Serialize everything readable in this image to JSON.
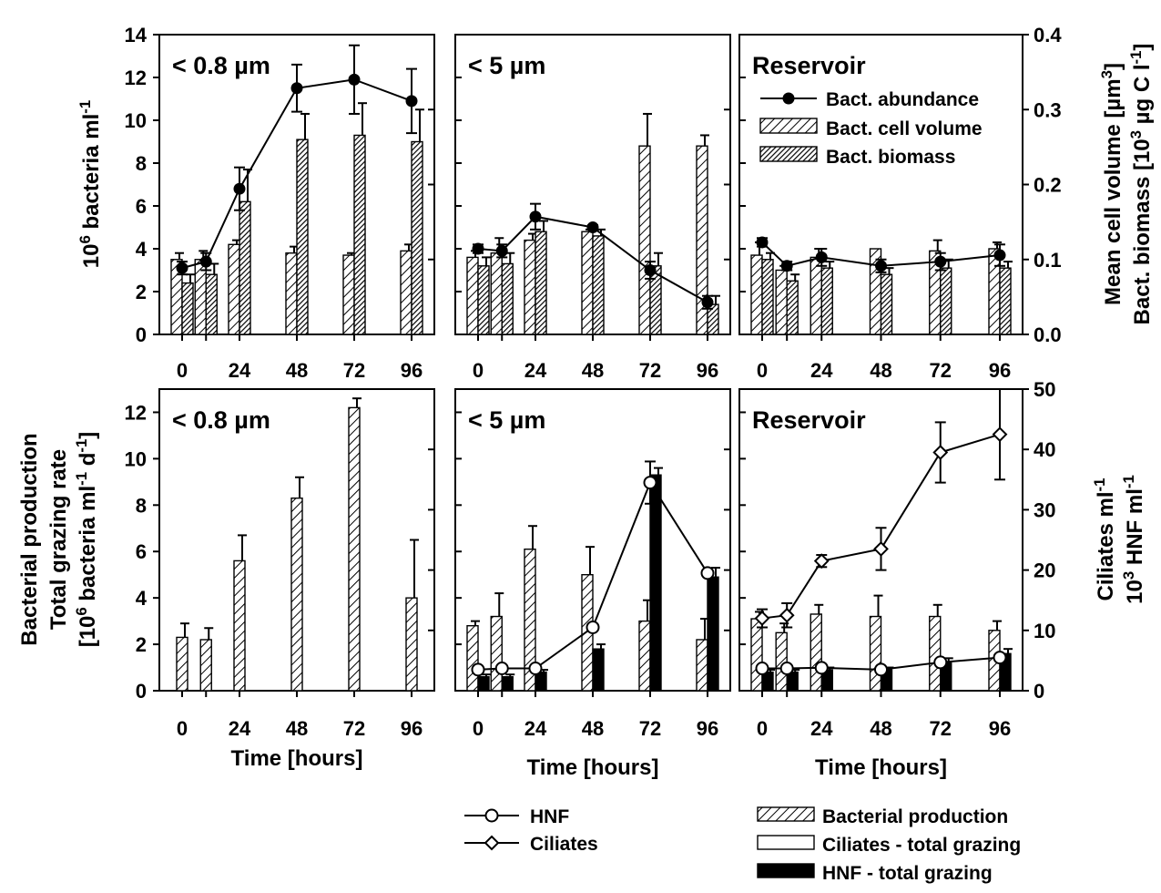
{
  "chart_data": [
    {
      "id": "top-small",
      "type": "bar+line",
      "title": "< 0.8 µm",
      "ylabel_left": "10^6 bacteria ml^-1",
      "ylim_left": [
        0,
        14
      ],
      "yticks_left": [
        0,
        2,
        4,
        6,
        8,
        10,
        12,
        14
      ],
      "ylim_right": [
        0,
        0.4
      ],
      "x_tick_labels": [
        0,
        24,
        48,
        72,
        96
      ],
      "groups": [
        0,
        10,
        24,
        48,
        72,
        96
      ],
      "series": [
        {
          "name": "Bact. abundance",
          "kind": "line",
          "axis": "left",
          "x": [
            0,
            10,
            24,
            48,
            72,
            96
          ],
          "y": [
            3.1,
            3.4,
            6.8,
            11.5,
            11.9,
            10.9
          ],
          "err": [
            0.3,
            0.4,
            1.0,
            1.1,
            1.6,
            1.5
          ]
        },
        {
          "name": "Bact. cell volume",
          "kind": "bar",
          "axis": "left",
          "x": [
            0,
            10,
            24,
            48,
            72,
            96
          ],
          "y": [
            3.5,
            3.5,
            4.2,
            3.8,
            3.7,
            3.9
          ],
          "err": [
            0.3,
            0.4,
            0.2,
            0.3,
            0.1,
            0.3
          ]
        },
        {
          "name": "Bact. biomass",
          "kind": "bar",
          "axis": "left",
          "x": [
            0,
            10,
            24,
            48,
            72,
            96
          ],
          "y": [
            2.4,
            2.8,
            6.2,
            9.1,
            9.3,
            9.0
          ],
          "err": [
            0.4,
            0.5,
            1.5,
            1.2,
            1.5,
            1.5
          ]
        }
      ]
    },
    {
      "id": "top-mid",
      "type": "bar+line",
      "title": "< 5 µm",
      "ylim_left": [
        0,
        14
      ],
      "x_tick_labels": [
        0,
        24,
        48,
        72,
        96
      ],
      "groups": [
        0,
        10,
        24,
        48,
        72,
        96
      ],
      "series": [
        {
          "name": "Bact. abundance",
          "kind": "line",
          "axis": "left",
          "x": [
            0,
            10,
            24,
            48,
            72,
            96
          ],
          "y": [
            4.0,
            3.9,
            5.5,
            5.0,
            3.0,
            1.5
          ],
          "err": [
            0.2,
            0.3,
            0.6,
            0.1,
            0.4,
            0.3
          ]
        },
        {
          "name": "Bact. cell volume",
          "kind": "bar",
          "axis": "left",
          "x": [
            0,
            10,
            24,
            48,
            72,
            96
          ],
          "y": [
            3.6,
            3.8,
            4.4,
            4.8,
            8.8,
            8.8
          ],
          "err": [
            0.3,
            0.7,
            0.3,
            0.1,
            1.5,
            0.5
          ]
        },
        {
          "name": "Bact. biomass",
          "kind": "bar",
          "axis": "left",
          "x": [
            0,
            10,
            24,
            48,
            72,
            96
          ],
          "y": [
            3.2,
            3.3,
            4.8,
            4.6,
            3.2,
            1.4
          ],
          "err": [
            0.4,
            0.5,
            0.5,
            0.3,
            0.6,
            0.4
          ]
        }
      ]
    },
    {
      "id": "top-res",
      "type": "bar+line",
      "title": "Reservoir",
      "ylabel_right": [
        "Mean cell volume [µm^3]",
        "Bact. biomass [10^3 µg C l^-1]"
      ],
      "ylim_left": [
        0,
        14
      ],
      "ylim_right": [
        0,
        0.4
      ],
      "yticks_right": [
        "0.0",
        "0.1",
        "0.2",
        "0.3",
        "0.4"
      ],
      "x_tick_labels": [
        0,
        24,
        48,
        72,
        96
      ],
      "groups": [
        0,
        10,
        24,
        48,
        72,
        96
      ],
      "legend": {
        "placement": "right, below title",
        "entries": [
          "Bact. abundance",
          "Bact. cell volume",
          "Bact. biomass"
        ]
      },
      "series": [
        {
          "name": "Bact. abundance",
          "kind": "line",
          "axis": "left",
          "x": [
            0,
            10,
            24,
            48,
            72,
            96
          ],
          "y": [
            4.3,
            3.2,
            3.6,
            3.2,
            3.4,
            3.7
          ],
          "err": [
            0.2,
            0.2,
            0.4,
            0.3,
            0.4,
            0.5
          ]
        },
        {
          "name": "Bact. cell volume",
          "kind": "bar",
          "axis": "left",
          "x": [
            0,
            10,
            24,
            48,
            72,
            96
          ],
          "y": [
            3.7,
            3.0,
            3.6,
            4.0,
            3.9,
            4.0
          ],
          "err": [
            0.6,
            0.2,
            0.4,
            0.0,
            0.5,
            0.3
          ]
        },
        {
          "name": "Bact. biomass",
          "kind": "bar",
          "axis": "left",
          "x": [
            0,
            10,
            24,
            48,
            72,
            96
          ],
          "y": [
            3.5,
            2.5,
            3.1,
            2.8,
            3.1,
            3.1
          ],
          "err": [
            0.3,
            0.3,
            0.3,
            0.3,
            0.4,
            0.3
          ]
        }
      ]
    },
    {
      "id": "bot-small",
      "type": "bar",
      "title": "< 0.8 µm",
      "ylabel_left": [
        "Bacterial production",
        "Total grazing rate",
        "[10^6 bacteria ml^-1 d^-1]"
      ],
      "ylim_left": [
        0,
        13
      ],
      "yticks_left": [
        0,
        2,
        4,
        6,
        8,
        10,
        12
      ],
      "x_tick_labels": [
        0,
        24,
        48,
        72,
        96
      ],
      "xlabel": "Time [hours]",
      "groups": [
        0,
        10,
        24,
        48,
        72,
        96
      ],
      "series": [
        {
          "name": "Bacterial production",
          "kind": "bar",
          "axis": "left",
          "x": [
            0,
            10,
            24,
            48,
            72,
            96
          ],
          "y": [
            2.3,
            2.2,
            5.6,
            8.3,
            12.2,
            4.0
          ],
          "err": [
            0.6,
            0.5,
            1.1,
            0.9,
            0.4,
            2.5
          ]
        }
      ]
    },
    {
      "id": "bot-mid",
      "type": "bar+line",
      "title": "< 5 µm",
      "ylim_left": [
        0,
        13
      ],
      "ylim_right": [
        0,
        50
      ],
      "x_tick_labels": [
        0,
        24,
        48,
        72,
        96
      ],
      "xlabel": "Time [hours]",
      "groups": [
        0,
        10,
        24,
        48,
        72,
        96
      ],
      "series": [
        {
          "name": "Bacterial production",
          "kind": "bar",
          "axis": "left",
          "x": [
            0,
            10,
            24,
            48,
            72,
            96
          ],
          "y": [
            2.8,
            3.2,
            6.1,
            5.0,
            3.0,
            2.2
          ],
          "err": [
            0.2,
            1.0,
            1.0,
            1.2,
            0.9,
            0.9
          ]
        },
        {
          "name": "HNF - total grazing",
          "kind": "bar",
          "axis": "left",
          "x": [
            0,
            10,
            24,
            48,
            72,
            96
          ],
          "y": [
            0.6,
            0.6,
            0.8,
            1.8,
            9.3,
            4.9
          ],
          "err": [
            0.1,
            0.1,
            0.1,
            0.2,
            0.3,
            0.4
          ]
        },
        {
          "name": "HNF",
          "kind": "line",
          "axis": "right",
          "x": [
            0,
            10,
            24,
            48,
            72,
            96
          ],
          "y": [
            3.5,
            3.7,
            3.7,
            10.5,
            34.5,
            19.5
          ],
          "err": [
            0,
            0,
            0,
            0,
            3.5,
            0
          ]
        }
      ]
    },
    {
      "id": "bot-res",
      "type": "bar+line",
      "title": "Reservoir",
      "ylabel_right": [
        "Ciliates ml^-1",
        "10^3 HNF ml^-1"
      ],
      "ylim_left": [
        0,
        13
      ],
      "ylim_right": [
        0,
        50
      ],
      "yticks_right": [
        0,
        10,
        20,
        30,
        40,
        50
      ],
      "x_tick_labels": [
        0,
        24,
        48,
        72,
        96
      ],
      "xlabel": "Time [hours]",
      "groups": [
        0,
        10,
        24,
        48,
        72,
        96
      ],
      "series": [
        {
          "name": "Bacterial production",
          "kind": "bar",
          "axis": "left",
          "x": [
            0,
            10,
            24,
            48,
            72,
            96
          ],
          "y": [
            3.1,
            2.5,
            3.3,
            3.2,
            3.2,
            2.6
          ],
          "err": [
            0.3,
            0.4,
            0.4,
            0.9,
            0.5,
            0.4
          ]
        },
        {
          "name": "HNF - total grazing",
          "kind": "bar",
          "axis": "left",
          "x": [
            0,
            10,
            24,
            48,
            72,
            96
          ],
          "y": [
            0.8,
            0.8,
            0.9,
            0.9,
            1.2,
            1.6
          ],
          "err": [
            0.1,
            0.1,
            0.1,
            0.1,
            0.2,
            0.2
          ]
        },
        {
          "name": "Ciliates",
          "kind": "line",
          "axis": "right",
          "x": [
            0,
            10,
            24,
            48,
            72,
            96
          ],
          "y": [
            12,
            12.5,
            21.5,
            23.5,
            39.5,
            42.5
          ],
          "err": [
            1.5,
            2.0,
            1.0,
            3.5,
            5.0,
            7.5
          ]
        },
        {
          "name": "HNF",
          "kind": "line",
          "axis": "right",
          "x": [
            0,
            10,
            24,
            48,
            72,
            96
          ],
          "y": [
            3.7,
            3.7,
            3.8,
            3.5,
            4.7,
            5.5
          ],
          "err": [
            0,
            0,
            0,
            0,
            0,
            0
          ]
        }
      ]
    }
  ],
  "legend_bottom": {
    "lines": [
      "HNF",
      "Ciliates"
    ],
    "bars": [
      "Bacterial production",
      "Ciliates - total grazing",
      "HNF - total grazing"
    ],
    "placement": "bottom, below middle and right panels"
  }
}
